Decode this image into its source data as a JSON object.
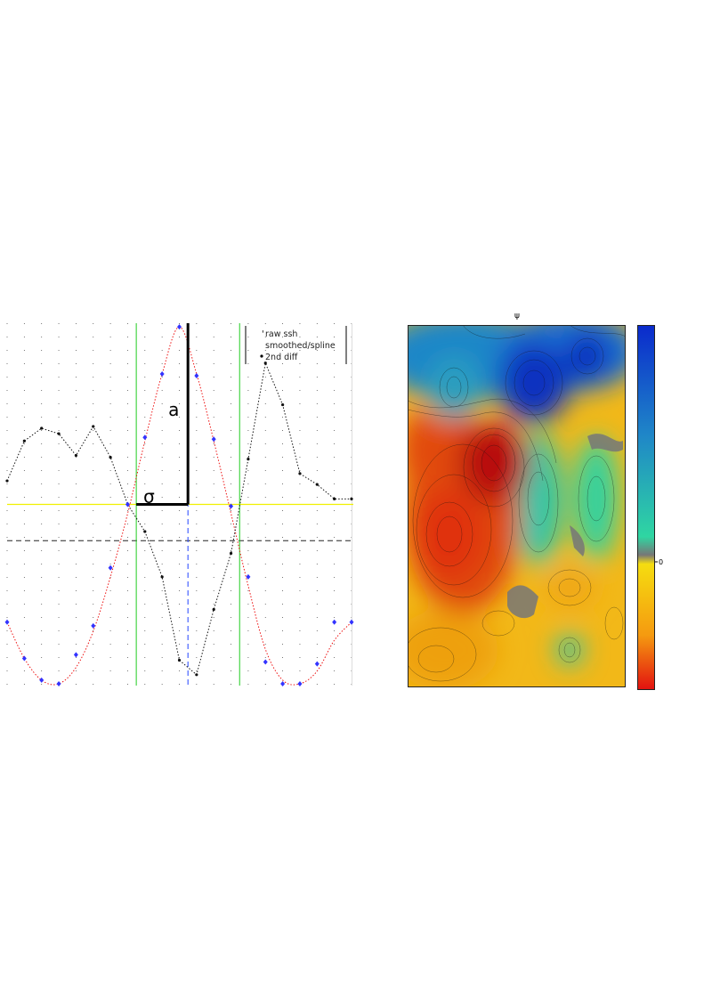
{
  "chart_data": [
    {
      "type": "line",
      "title": "",
      "xlabel": "",
      "ylabel": "",
      "xlim": [
        0,
        20
      ],
      "ylim": [
        -1,
        1
      ],
      "grid": true,
      "legend": {
        "placement": "top-right",
        "entries": [
          "raw ssh",
          "smoothed/spline",
          "2nd diff"
        ]
      },
      "annotations": {
        "amplitude_label": "a",
        "width_label": "σ"
      },
      "reference_lines": {
        "zero_level": -0.2,
        "half_amplitude_level": 0.0,
        "eddy_edges_x": [
          7.5,
          13.5
        ],
        "center_x": 10.5
      },
      "series": [
        {
          "name": "raw ssh",
          "color": "#3333ff",
          "x": [
            0,
            1,
            2,
            3,
            4,
            5,
            6,
            7,
            8,
            9,
            10,
            11,
            12,
            13,
            14,
            15,
            16,
            17,
            18,
            19,
            20
          ],
          "y": [
            -0.65,
            -0.85,
            -0.97,
            -0.99,
            -0.83,
            -0.67,
            -0.35,
            0.0,
            0.37,
            0.72,
            0.98,
            0.71,
            0.36,
            -0.01,
            -0.4,
            -0.87,
            -0.99,
            -0.99,
            -0.88,
            -0.65,
            -0.65
          ]
        },
        {
          "name": "smoothed/spline",
          "color": "#ee1111",
          "x": [
            0,
            1,
            2,
            3,
            4,
            5,
            6,
            7,
            8,
            9,
            10,
            11,
            12,
            13,
            14,
            15,
            16,
            17,
            18,
            19,
            20
          ],
          "y": [
            -0.65,
            -0.85,
            -0.97,
            -0.99,
            -0.9,
            -0.7,
            -0.4,
            -0.05,
            0.35,
            0.72,
            0.98,
            0.72,
            0.35,
            -0.05,
            -0.45,
            -0.8,
            -0.97,
            -0.99,
            -0.92,
            -0.75,
            -0.65
          ]
        },
        {
          "name": "2nd diff",
          "color": "#111111",
          "x": [
            0,
            1,
            2,
            3,
            4,
            5,
            6,
            7,
            8,
            9,
            10,
            11,
            12,
            13,
            14,
            15,
            16,
            17,
            18,
            19,
            20
          ],
          "y": [
            0.13,
            0.35,
            0.42,
            0.39,
            0.27,
            0.43,
            0.26,
            0.0,
            -0.15,
            -0.4,
            -0.86,
            -0.94,
            -0.58,
            -0.27,
            0.25,
            0.78,
            0.55,
            0.17,
            0.11,
            0.03,
            0.03
          ]
        }
      ]
    },
    {
      "type": "heatmap",
      "title": "ψ",
      "colorbar": {
        "tick_labels": [
          "0"
        ],
        "colors_top_to_bottom": [
          "#0a2acc",
          "#1f86c8",
          "#2fd6a2",
          "#777777",
          "#f5dd10",
          "#f59a10",
          "#e21010"
        ]
      },
      "features": [
        {
          "kind": "low",
          "color": "#1030c0",
          "label": ""
        },
        {
          "kind": "low",
          "color": "#1030c0",
          "label": ""
        },
        {
          "kind": "high",
          "color": "#b80808",
          "label": ""
        },
        {
          "kind": "high",
          "color": "#e03010",
          "label": ""
        },
        {
          "kind": "mid",
          "color": "#30d2a0",
          "label": ""
        }
      ]
    }
  ]
}
